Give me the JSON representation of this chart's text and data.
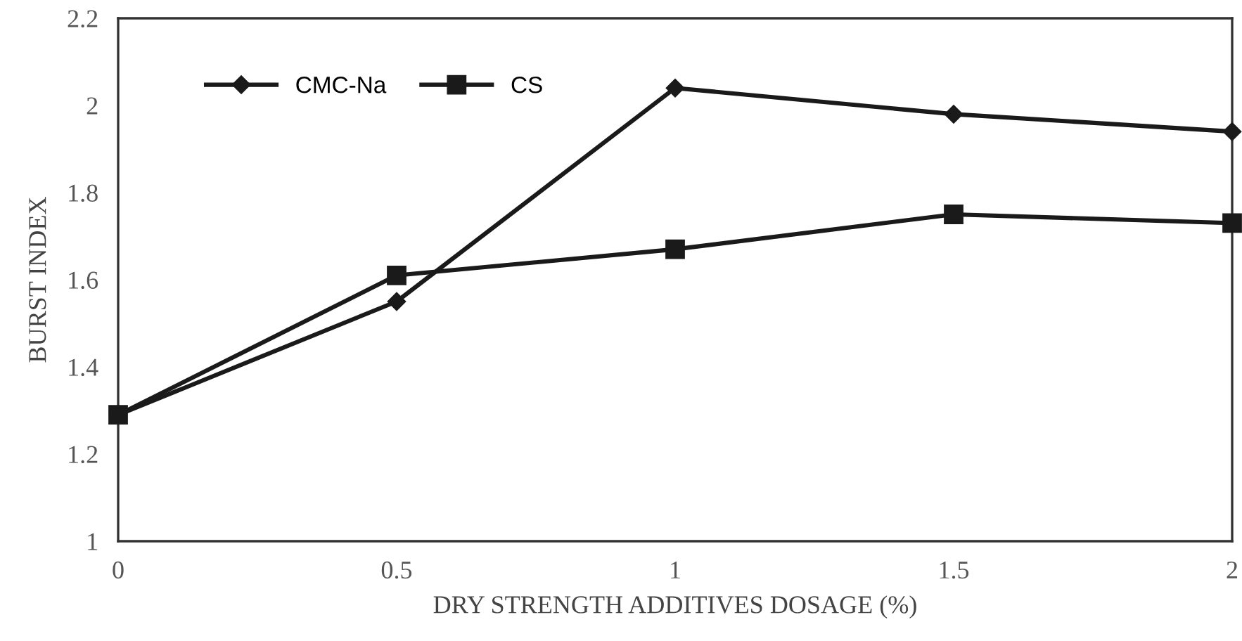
{
  "chart_data": {
    "type": "line",
    "xlabel": "DRY STRENGTH ADDITIVES DOSAGE (%)",
    "ylabel": "BURST INDEX",
    "x": [
      0,
      0.5,
      1,
      1.5,
      2
    ],
    "series": [
      {
        "name": "CMC-Na",
        "color": "#1a1a1a",
        "marker": "diamond",
        "values": [
          1.29,
          1.55,
          2.04,
          1.98,
          1.94
        ]
      },
      {
        "name": "CS",
        "color": "#1a1a1a",
        "marker": "square",
        "values": [
          1.29,
          1.61,
          1.67,
          1.75,
          1.73
        ]
      }
    ],
    "xlim": [
      0,
      2
    ],
    "xticks": [
      0,
      {
        "value": 0.5,
        "label": "0.5"
      },
      1,
      {
        "value": 1.5,
        "label": "1.5"
      },
      2
    ],
    "ylim": [
      1,
      2.2
    ],
    "yticks": [
      1,
      {
        "value": 1.2,
        "label": "1.2"
      },
      {
        "value": 1.4,
        "label": "1.4"
      },
      {
        "value": 1.6,
        "label": "1.6"
      },
      {
        "value": 1.8,
        "label": "1.8"
      },
      2,
      {
        "value": 2.2,
        "label": "2.2"
      }
    ],
    "grid": false,
    "legend": "top left",
    "line_style": "solid"
  }
}
